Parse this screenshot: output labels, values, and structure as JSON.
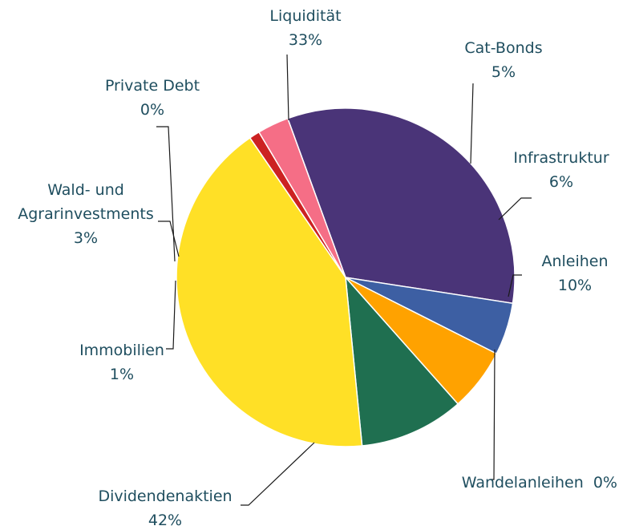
{
  "chart_data": {
    "type": "pie",
    "title": "",
    "slices": [
      {
        "name": "Liquidität",
        "value_label": "33%",
        "value": 33,
        "color": "#4a3478"
      },
      {
        "name": "Cat-Bonds",
        "value_label": "5%",
        "value": 5,
        "color": "#3d5fa3"
      },
      {
        "name": "Infrastruktur",
        "value_label": "6%",
        "value": 6,
        "color": "#ffa200"
      },
      {
        "name": "Anleihen",
        "value_label": "10%",
        "value": 10,
        "color": "#1f6f50"
      },
      {
        "name": "Wandelanleihen",
        "value_label": "0%",
        "value": 0,
        "color": "#3d8a9a"
      },
      {
        "name": "Dividendenaktien",
        "value_label": "42%",
        "value": 42,
        "color": "#ffe026"
      },
      {
        "name": "Immobilien",
        "value_label": "1%",
        "value": 1,
        "color": "#cc2222"
      },
      {
        "name": "Wald- und Agrarinvestments",
        "value_label": "3%",
        "value": 3,
        "color": "#f56e86"
      },
      {
        "name": "Private Debt",
        "value_label": "0%",
        "value": 0,
        "color": "#888888"
      }
    ],
    "legend": "none"
  }
}
